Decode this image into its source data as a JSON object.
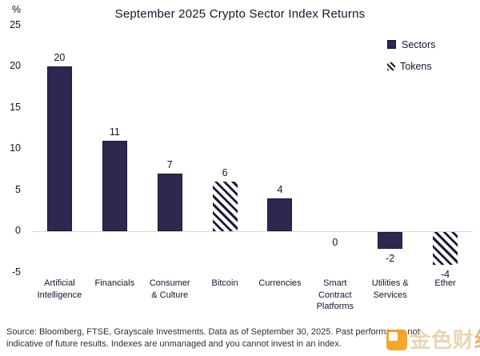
{
  "title": "September 2025 Crypto Sector Index Returns",
  "chart_data": {
    "type": "bar",
    "title": "September 2025 Crypto Sector Index Returns",
    "unit": "%",
    "ylabel": "%",
    "ylim": [
      -5,
      25
    ],
    "yticks": [
      25,
      20,
      15,
      10,
      5,
      0,
      -5
    ],
    "grid": false,
    "legend_position": "top-right",
    "categories": [
      "Artificial\nIntelligence",
      "Financials",
      "Consumer\n& Culture",
      "Bitcoin",
      "Currencies",
      "Smart\nContract\nPlatforms",
      "Utilities &\nServices",
      "Ether"
    ],
    "values": [
      20,
      11,
      7,
      6,
      4,
      0,
      -2,
      -4
    ],
    "value_labels": [
      "20",
      "11",
      "7",
      "6",
      "4",
      "0",
      "-2",
      "-4"
    ],
    "bar_styles": [
      "solid",
      "solid",
      "solid",
      "hatched",
      "solid",
      "solid",
      "solid",
      "hatched"
    ],
    "legend": [
      {
        "label": "Sectors",
        "style": "solid"
      },
      {
        "label": "Tokens",
        "style": "hatched"
      }
    ]
  },
  "colors": {
    "bar_fill": "#2e2750",
    "bar_border": "#1c1936",
    "hatch_stripe": "#1d1a38",
    "axis_line": "#d9d9d9",
    "text": "#15142e",
    "watermark_orange": "#f5a01e"
  },
  "footer": {
    "source_note": "Source: Bloomberg, FTSE, Grayscale Investments. Data as of September 30, 2025. Past performance not\nindicative of future results. Indexes are unmanaged and you cannot invest in an index."
  },
  "watermark": {
    "text_light": "金色财",
    "text_accent": "经"
  }
}
